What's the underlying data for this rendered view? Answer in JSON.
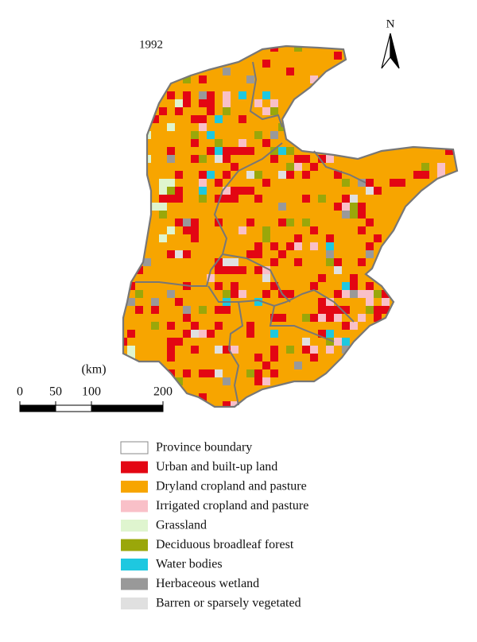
{
  "map": {
    "title": "1992",
    "north": "N",
    "scale": {
      "unit": "(km)",
      "ticks": [
        0,
        50,
        100,
        200
      ]
    },
    "legend": [
      {
        "name": "Province boundary",
        "color": "#ffffff"
      },
      {
        "name": "Urban and built-up land",
        "color": "#e30613"
      },
      {
        "name": "Dryland cropland and pasture",
        "color": "#f7a500"
      },
      {
        "name": "Irrigated cropland and pasture",
        "color": "#f9c0c8"
      },
      {
        "name": "Grassland",
        "color": "#dff5cf"
      },
      {
        "name": "Deciduous broadleaf forest",
        "color": "#9aa70a"
      },
      {
        "name": "Water bodies",
        "color": "#1ec8e0"
      },
      {
        "name": "Herbaceous wetland",
        "color": "#999999"
      },
      {
        "name": "Barren or sparsely vegetated",
        "color": "#e0e0e0"
      }
    ]
  }
}
